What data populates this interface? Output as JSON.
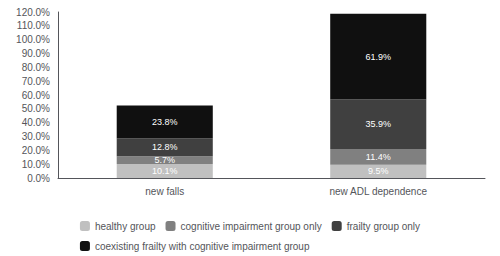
{
  "chart_data": {
    "type": "bar",
    "stacked": true,
    "data_labels": true,
    "grid": false,
    "legend": "bottom",
    "categories": [
      "new falls",
      "new ADL dependence"
    ],
    "series": [
      {
        "name": "healthy group",
        "color": "#c0c0c0",
        "values": [
          10.1,
          9.5
        ],
        "value_labels": [
          "10.1%",
          "9.5%"
        ]
      },
      {
        "name": "cognitive impairment group only",
        "color": "#808080",
        "values": [
          5.7,
          11.4
        ],
        "value_labels": [
          "5.7%",
          "11.4%"
        ]
      },
      {
        "name": "frailty group only",
        "color": "#404040",
        "values": [
          12.8,
          35.9
        ],
        "value_labels": [
          "12.8%",
          "35.9%"
        ]
      },
      {
        "name": "coexisting frailty with cognitive impairment group",
        "color": "#101010",
        "values": [
          23.8,
          61.9
        ],
        "value_labels": [
          "23.8%",
          "61.9%"
        ]
      }
    ],
    "ylim": [
      0,
      120
    ],
    "yticks": [
      {
        "value": 0,
        "label": "0.0%"
      },
      {
        "value": 10,
        "label": "10.0%"
      },
      {
        "value": 20,
        "label": "20.0%"
      },
      {
        "value": 30,
        "label": "30.0%"
      },
      {
        "value": 40,
        "label": "40.0%"
      },
      {
        "value": 50,
        "label": "50.0%"
      },
      {
        "value": 60,
        "label": "60.0%"
      },
      {
        "value": 70,
        "label": "70.0%"
      },
      {
        "value": 80,
        "label": "80.0%"
      },
      {
        "value": 90,
        "label": "90.0%"
      },
      {
        "value": 100,
        "label": "100.0%"
      },
      {
        "value": 110,
        "label": "110.0%"
      },
      {
        "value": 120,
        "label": "120.0%"
      }
    ]
  }
}
